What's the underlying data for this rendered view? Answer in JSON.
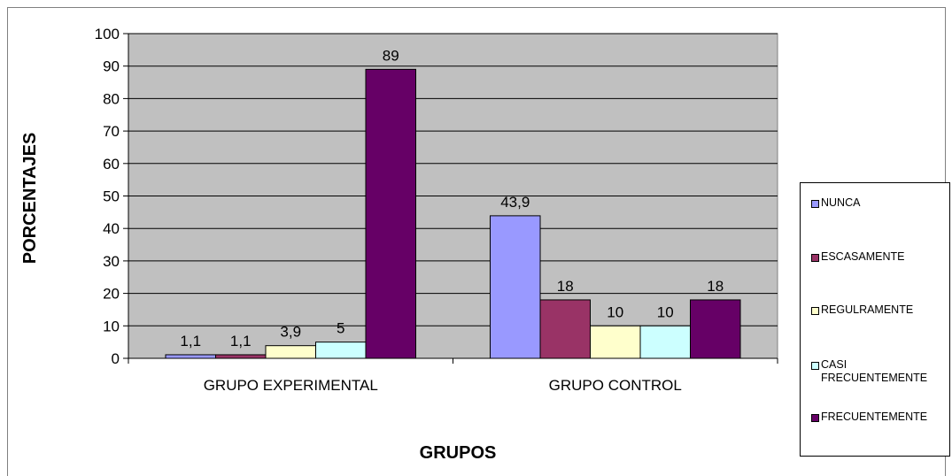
{
  "chart_data": {
    "type": "bar",
    "title": "",
    "xlabel": "GRUPOS",
    "ylabel": "PORCENTAJES",
    "ylim": [
      0,
      100
    ],
    "yticks": [
      "0",
      "10",
      "20",
      "30",
      "40",
      "50",
      "60",
      "70",
      "80",
      "90",
      "100"
    ],
    "grid": true,
    "legend_position": "right",
    "categories": [
      "GRUPO EXPERIMENTAL",
      "GRUPO CONTROL"
    ],
    "series": [
      {
        "name": "NUNCA",
        "color": "#9999FF",
        "values": [
          1.1,
          43.9
        ],
        "labels": [
          "1,1",
          "43,9"
        ]
      },
      {
        "name": "ESCASAMENTE",
        "color": "#993366",
        "values": [
          1.1,
          18
        ],
        "labels": [
          "1,1",
          "18"
        ]
      },
      {
        "name": "REGULRAMENTE",
        "color": "#FFFFCC",
        "values": [
          3.9,
          10
        ],
        "labels": [
          "3,9",
          "10"
        ]
      },
      {
        "name": "CASI FRECUENTEMENTE",
        "color": "#CCFFFF",
        "values": [
          5,
          10
        ],
        "labels": [
          "5",
          "10"
        ]
      },
      {
        "name": "FRECUENTEMENTE",
        "color": "#660066",
        "values": [
          89,
          18
        ],
        "labels": [
          "89",
          "18"
        ]
      }
    ],
    "plot_background": "#C0C0C0"
  }
}
